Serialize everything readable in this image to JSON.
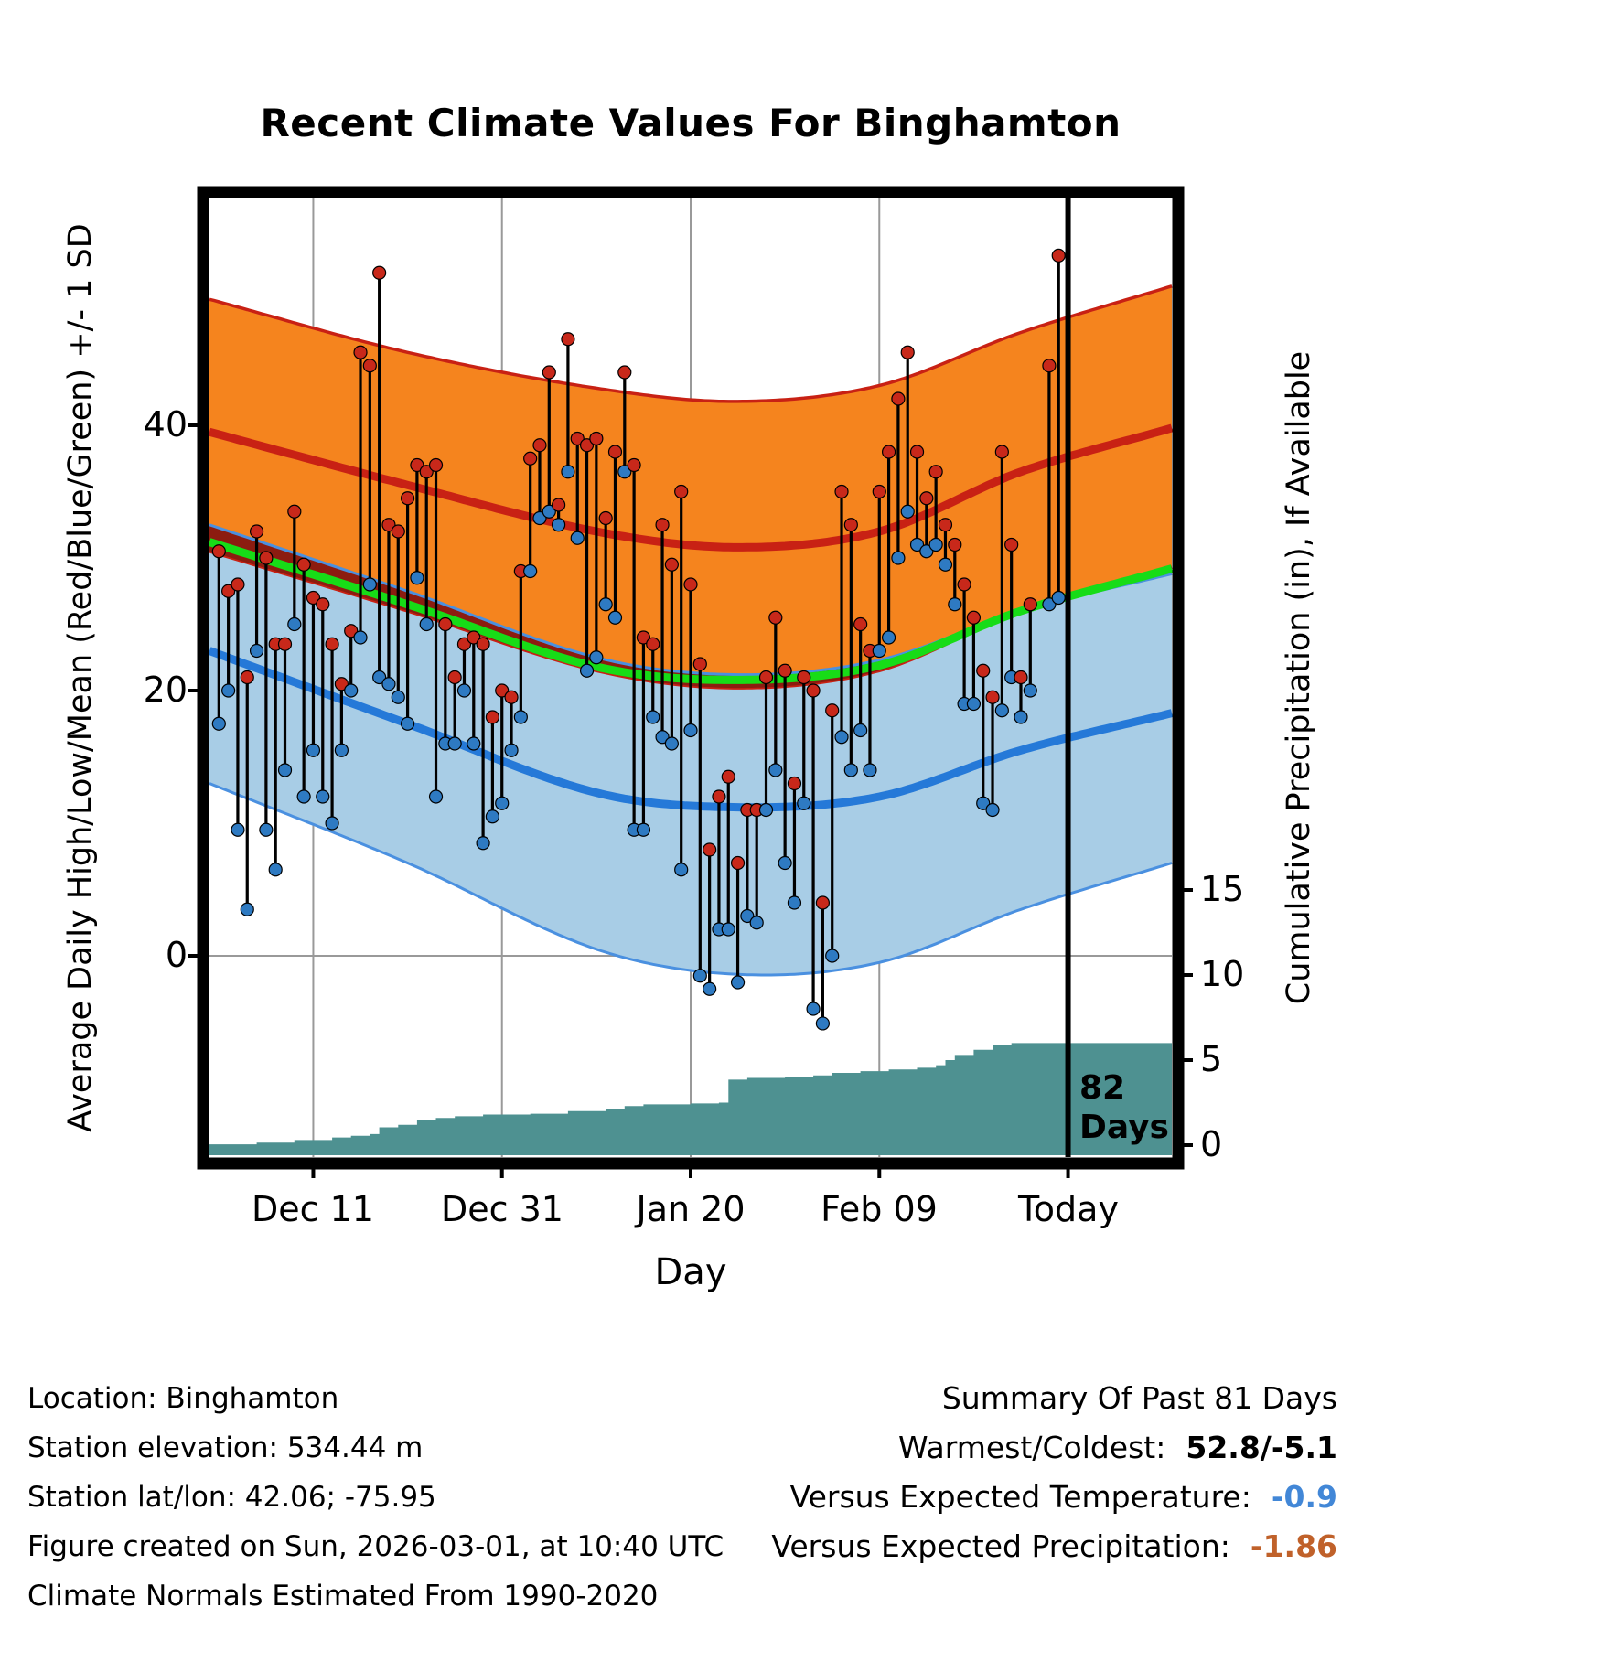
{
  "title": "Recent Climate Values For Binghamton",
  "axes": {
    "left_label": "Average Daily High/Low/Mean (Red/Blue/Green) +/- 1 SD",
    "right_label": "Cumulative Precipitation (in), If Available",
    "x_label": "Day",
    "left_tick_labels": [
      "40",
      "20",
      "0"
    ],
    "right_tick_labels": [
      "15",
      "10",
      "5",
      "0"
    ],
    "x_tick_labels": [
      "Dec 11",
      "Dec 31",
      "Jan 20",
      "Feb 09",
      "Today"
    ]
  },
  "annotation": {
    "line1": "82",
    "line2": "Days"
  },
  "footer": {
    "lines": [
      "Location: Binghamton",
      "Station elevation: 534.44 m",
      "Station lat/lon: 42.06; -75.95",
      "Figure created on Sun, 2026-03-01, at 10:40 UTC",
      "Climate Normals Estimated From 1990-2020"
    ]
  },
  "summary": {
    "title": "Summary Of Past 81 Days",
    "rows": [
      {
        "label": "Warmest/Coldest:",
        "value": "52.8/-5.1",
        "color": "#000000"
      },
      {
        "label": "Versus Expected Temperature:",
        "value": "-0.9",
        "color": "#4287d7"
      },
      {
        "label": "Versus Expected Precipitation:",
        "value": "-1.86",
        "color": "#c0612a"
      }
    ]
  },
  "colors": {
    "high_band": "#f5841e",
    "high_line": "#c82114",
    "overlap_band": "#8c1c10",
    "low_band": "#a8cde6",
    "low_line": "#2579d8",
    "low_edge": "#4a90e0",
    "mean_line": "#17dc17",
    "precip_fill": "#4e9191",
    "stem": "#000000",
    "high_dot": "#c8281a",
    "low_dot": "#2e7ac2",
    "grid": "#999999",
    "frame": "#000000"
  },
  "chart_data": {
    "type": "composite",
    "subtypes": [
      "band",
      "line",
      "scatter",
      "area"
    ],
    "title": "Recent Climate Values For Binghamton",
    "xlabel": "Day",
    "ylabel_left": "Average Daily High/Low/Mean (Red/Blue/Green) +/- 1 SD",
    "ylabel_right": "Cumulative Precipitation (in), If Available",
    "x_domain_days": [
      -1,
      101
    ],
    "x_tick_days": [
      10,
      30,
      50,
      70,
      90
    ],
    "x_tick_labels": [
      "Dec 11",
      "Dec 31",
      "Jan 20",
      "Feb 09",
      "Today"
    ],
    "temp_ticks": [
      0,
      20,
      40
    ],
    "precip_ticks": [
      0,
      5,
      10,
      15
    ],
    "today_day": 90,
    "bands_normals_deg_f": {
      "high_plus_sd": [
        [
          -1,
          49.5
        ],
        [
          20,
          45.5
        ],
        [
          40,
          42.8
        ],
        [
          55,
          41.8
        ],
        [
          70,
          43
        ],
        [
          85,
          47
        ],
        [
          101,
          50.5
        ]
      ],
      "high_mean": [
        [
          -1,
          39.5
        ],
        [
          20,
          35.5
        ],
        [
          40,
          32
        ],
        [
          55,
          30.8
        ],
        [
          70,
          32
        ],
        [
          85,
          36.5
        ],
        [
          101,
          39.8
        ]
      ],
      "high_minus_sd": [
        [
          -1,
          30.5
        ],
        [
          20,
          26
        ],
        [
          40,
          21.5
        ],
        [
          55,
          20.2
        ],
        [
          70,
          21.5
        ],
        [
          85,
          26
        ],
        [
          101,
          29.3
        ]
      ],
      "low_plus_sd": [
        [
          -1,
          32.5
        ],
        [
          20,
          27.5
        ],
        [
          40,
          22.5
        ],
        [
          55,
          21.2
        ],
        [
          70,
          22.3
        ],
        [
          85,
          26
        ],
        [
          101,
          28.8
        ]
      ],
      "mean": [
        [
          -1,
          31.2
        ],
        [
          20,
          26.5
        ],
        [
          40,
          21.8
        ],
        [
          55,
          20.8
        ],
        [
          70,
          21.9
        ],
        [
          85,
          26
        ],
        [
          101,
          29.2
        ]
      ],
      "low_mean": [
        [
          -1,
          23
        ],
        [
          20,
          17.5
        ],
        [
          40,
          12.3
        ],
        [
          55,
          11.2
        ],
        [
          70,
          12
        ],
        [
          85,
          15.5
        ],
        [
          101,
          18.3
        ]
      ],
      "low_minus_sd": [
        [
          -1,
          13
        ],
        [
          20,
          7
        ],
        [
          40,
          0.5
        ],
        [
          55,
          -1.4
        ],
        [
          70,
          -0.5
        ],
        [
          85,
          3.5
        ],
        [
          101,
          7
        ]
      ]
    },
    "daily_temps_day_high_low": [
      [
        0,
        30.5,
        17.5
      ],
      [
        1,
        27.5,
        20
      ],
      [
        2,
        28,
        9.5
      ],
      [
        3,
        21,
        3.5
      ],
      [
        4,
        32,
        23
      ],
      [
        5,
        30,
        9.5
      ],
      [
        6,
        23.5,
        6.5
      ],
      [
        7,
        23.5,
        14
      ],
      [
        8,
        33.5,
        25
      ],
      [
        9,
        29.5,
        12
      ],
      [
        10,
        27,
        15.5
      ],
      [
        11,
        26.5,
        12
      ],
      [
        12,
        23.5,
        10
      ],
      [
        13,
        20.5,
        15.5
      ],
      [
        14,
        24.5,
        20
      ],
      [
        15,
        45.5,
        24
      ],
      [
        16,
        44.5,
        28
      ],
      [
        17,
        51.5,
        21
      ],
      [
        18,
        32.5,
        20.5
      ],
      [
        19,
        32,
        19.5
      ],
      [
        20,
        34.5,
        17.5
      ],
      [
        21,
        37,
        28.5
      ],
      [
        22,
        36.5,
        25
      ],
      [
        23,
        37,
        12
      ],
      [
        24,
        25,
        16
      ],
      [
        25,
        21,
        16
      ],
      [
        26,
        23.5,
        20
      ],
      [
        27,
        24,
        16
      ],
      [
        28,
        23.5,
        8.5
      ],
      [
        29,
        18,
        10.5
      ],
      [
        30,
        20,
        11.5
      ],
      [
        31,
        19.5,
        15.5
      ],
      [
        32,
        29,
        18
      ],
      [
        33,
        37.5,
        29
      ],
      [
        34,
        38.5,
        33
      ],
      [
        35,
        44,
        33.5
      ],
      [
        36,
        34,
        32.5
      ],
      [
        37,
        46.5,
        36.5
      ],
      [
        38,
        39,
        31.5
      ],
      [
        39,
        38.5,
        21.5
      ],
      [
        40,
        39,
        22.5
      ],
      [
        41,
        33,
        26.5
      ],
      [
        42,
        38,
        25.5
      ],
      [
        43,
        44,
        36.5
      ],
      [
        44,
        37,
        9.5
      ],
      [
        45,
        24,
        9.5
      ],
      [
        46,
        23.5,
        18
      ],
      [
        47,
        32.5,
        16.5
      ],
      [
        48,
        29.5,
        16
      ],
      [
        49,
        35,
        6.5
      ],
      [
        50,
        28,
        17
      ],
      [
        51,
        22,
        -1.5
      ],
      [
        52,
        8,
        -2.5
      ],
      [
        53,
        12,
        2
      ],
      [
        54,
        13.5,
        2
      ],
      [
        55,
        7,
        -2
      ],
      [
        56,
        11,
        3
      ],
      [
        57,
        11,
        2.5
      ],
      [
        58,
        21,
        11
      ],
      [
        59,
        25.5,
        14
      ],
      [
        60,
        21.5,
        7
      ],
      [
        61,
        13,
        4
      ],
      [
        62,
        21,
        11.5
      ],
      [
        63,
        20,
        -4
      ],
      [
        64,
        4,
        -5.1
      ],
      [
        65,
        18.5,
        0
      ],
      [
        66,
        35,
        16.5
      ],
      [
        67,
        32.5,
        14
      ],
      [
        68,
        25,
        17
      ],
      [
        69,
        23,
        14
      ],
      [
        70,
        35,
        23
      ],
      [
        71,
        38,
        24
      ],
      [
        72,
        42,
        30
      ],
      [
        73,
        45.5,
        33.5
      ],
      [
        74,
        38,
        31
      ],
      [
        75,
        34.5,
        30.5
      ],
      [
        76,
        36.5,
        31
      ],
      [
        77,
        32.5,
        29.5
      ],
      [
        78,
        31,
        26.5
      ],
      [
        79,
        28,
        19
      ],
      [
        80,
        25.5,
        19
      ],
      [
        81,
        21.5,
        11.5
      ],
      [
        82,
        19.5,
        11
      ],
      [
        83,
        38,
        18.5
      ],
      [
        84,
        31,
        21
      ],
      [
        85,
        21,
        18
      ],
      [
        86,
        26.5,
        20
      ],
      [
        88,
        44.5,
        26.5
      ],
      [
        89,
        52.8,
        27
      ]
    ],
    "cumulative_precip_day_inches": [
      [
        -1,
        0.05
      ],
      [
        4,
        0.15
      ],
      [
        8,
        0.3
      ],
      [
        12,
        0.45
      ],
      [
        14,
        0.55
      ],
      [
        16,
        0.65
      ],
      [
        17,
        1.05
      ],
      [
        19,
        1.2
      ],
      [
        21,
        1.45
      ],
      [
        23,
        1.6
      ],
      [
        25,
        1.7
      ],
      [
        28,
        1.8
      ],
      [
        33,
        1.85
      ],
      [
        37,
        2.0
      ],
      [
        41,
        2.15
      ],
      [
        43,
        2.3
      ],
      [
        45,
        2.4
      ],
      [
        50,
        2.45
      ],
      [
        53,
        2.5
      ],
      [
        54,
        3.85
      ],
      [
        56,
        3.95
      ],
      [
        60,
        4.0
      ],
      [
        63,
        4.1
      ],
      [
        65,
        4.25
      ],
      [
        68,
        4.35
      ],
      [
        71,
        4.45
      ],
      [
        74,
        4.55
      ],
      [
        76,
        4.7
      ],
      [
        77,
        5.0
      ],
      [
        78,
        5.3
      ],
      [
        80,
        5.6
      ],
      [
        82,
        5.9
      ],
      [
        84,
        6.0
      ],
      [
        101,
        6.05
      ]
    ]
  }
}
